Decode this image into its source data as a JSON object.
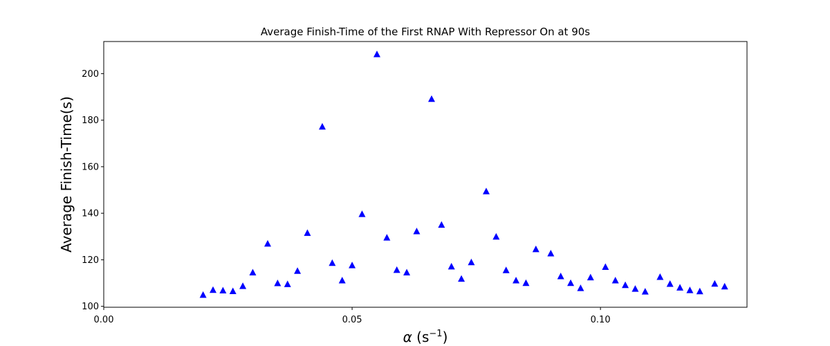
{
  "chart_data": {
    "type": "scatter",
    "title": "Average Finish-Time of the First RNAP With Repressor On at 90s",
    "xlabel_symbol": "α",
    "xlabel_unit": "s",
    "xlabel_unit_exp": "−1",
    "ylabel": "Average Finish-Time(s)",
    "xlim": [
      0.0,
      0.1295
    ],
    "ylim": [
      99.6,
      213.8
    ],
    "xticks": [
      0.0,
      0.05,
      0.1
    ],
    "xtick_labels": [
      "0.00",
      "0.05",
      "0.10"
    ],
    "yticks": [
      100,
      120,
      140,
      160,
      180,
      200
    ],
    "ytick_labels": [
      "100",
      "120",
      "140",
      "160",
      "180",
      "200"
    ],
    "grid": false,
    "marker": "triangle-up",
    "color": "#0000ff",
    "series": [
      {
        "x": [
          0.02,
          0.022,
          0.024,
          0.026,
          0.028,
          0.03,
          0.033,
          0.035,
          0.037,
          0.039,
          0.041,
          0.044,
          0.046,
          0.048,
          0.05,
          0.052,
          0.055,
          0.057,
          0.059,
          0.061,
          0.063,
          0.066,
          0.068,
          0.07,
          0.072,
          0.074,
          0.077,
          0.079,
          0.081,
          0.083,
          0.085,
          0.087,
          0.09,
          0.092,
          0.094,
          0.096,
          0.098,
          0.101,
          0.103,
          0.105,
          0.107,
          0.109,
          0.112,
          0.114,
          0.116,
          0.118,
          0.12,
          0.123,
          0.125
        ],
        "y": [
          105.0,
          107.1,
          106.9,
          106.6,
          108.8,
          114.6,
          127.0,
          110.0,
          109.6,
          115.3,
          131.6,
          177.3,
          118.7,
          111.2,
          117.7,
          139.7,
          208.4,
          129.6,
          115.7,
          114.6,
          132.3,
          189.2,
          135.1,
          117.2,
          111.9,
          119.0,
          149.5,
          130.0,
          115.6,
          111.2,
          110.1,
          124.6,
          122.8,
          113.0,
          110.1,
          107.9,
          112.5,
          117.0,
          111.2,
          109.2,
          107.6,
          106.4,
          112.7,
          109.7,
          108.1,
          107.0,
          106.5,
          109.8,
          108.6
        ]
      }
    ]
  }
}
